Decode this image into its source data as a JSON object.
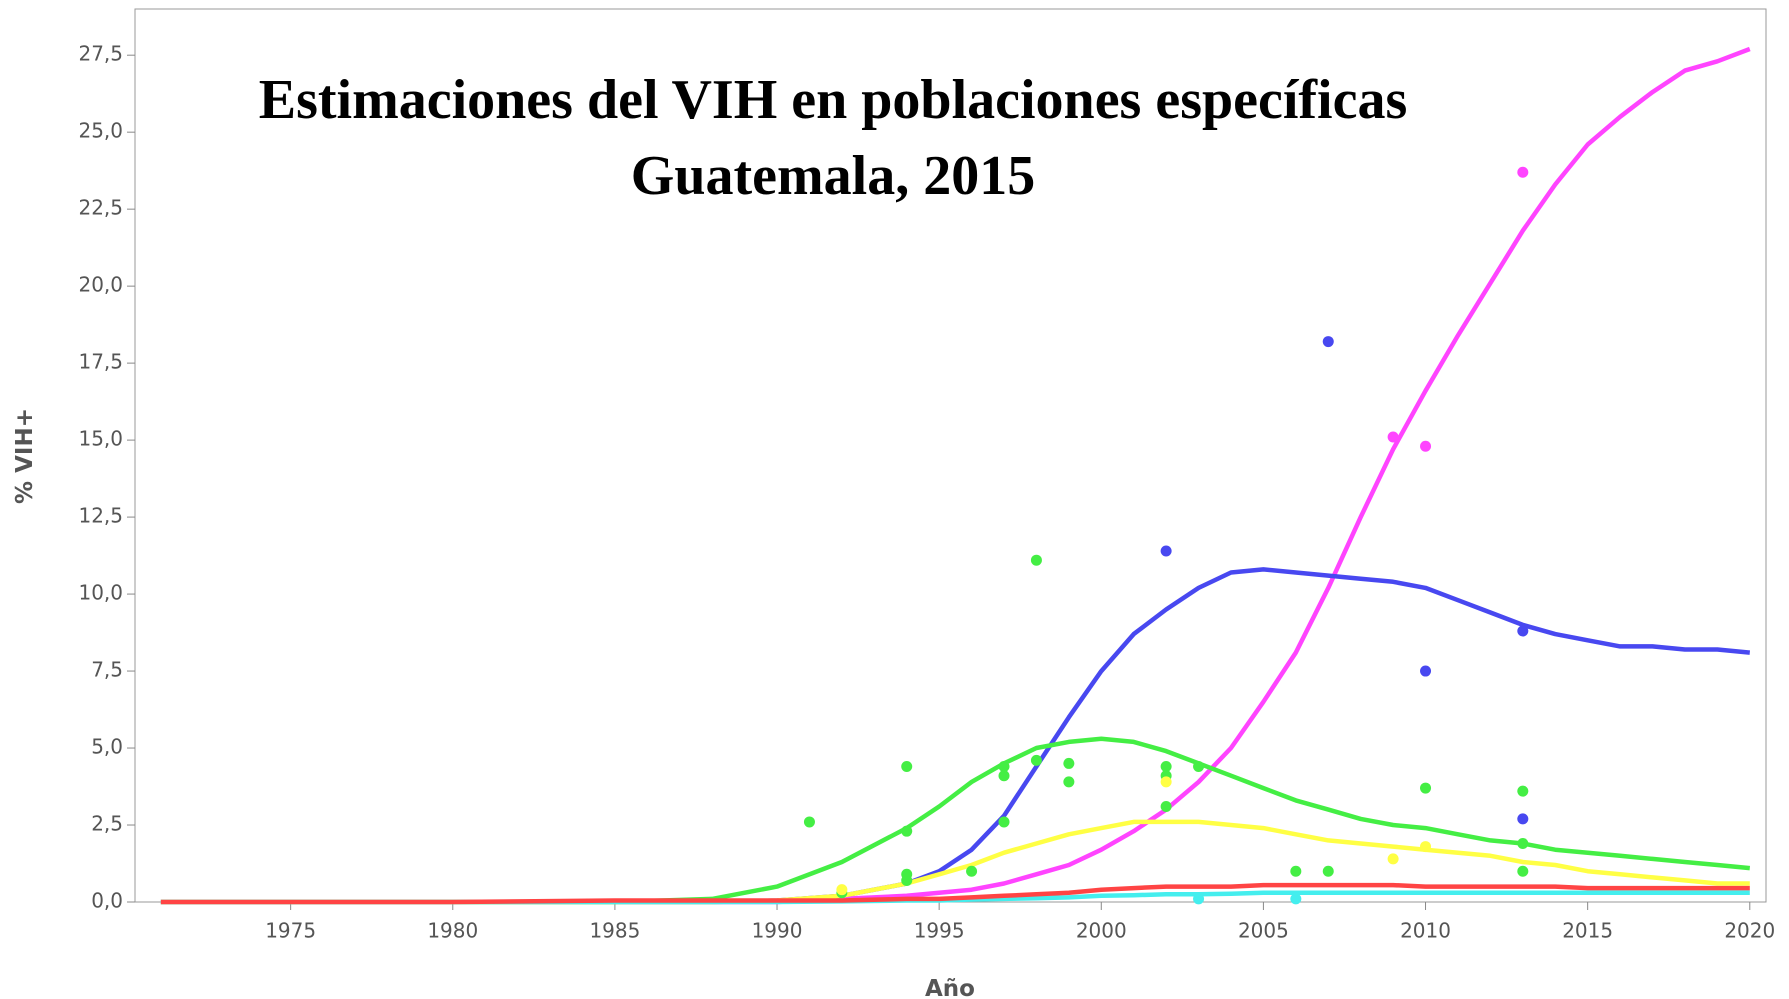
{
  "chart_data": {
    "type": "line",
    "title": "Estimaciones del VIH en poblaciones específicas",
    "subtitle": "Guatemala, 2015",
    "x_label": "Año",
    "y_label": "% VIH+",
    "xlim": [
      1970.2,
      2020.5
    ],
    "ylim": [
      0,
      29
    ],
    "xticks": [
      1975,
      1980,
      1985,
      1990,
      1995,
      2000,
      2005,
      2010,
      2015,
      2020
    ],
    "yticks": [
      {
        "value": 0,
        "label": "0,0"
      },
      {
        "value": 2.5,
        "label": "2,5"
      },
      {
        "value": 5,
        "label": "5,0"
      },
      {
        "value": 7.5,
        "label": "7,5"
      },
      {
        "value": 10,
        "label": "10,0"
      },
      {
        "value": 12.5,
        "label": "12,5"
      },
      {
        "value": 15,
        "label": "15,0"
      },
      {
        "value": 17.5,
        "label": "17,5"
      },
      {
        "value": 20,
        "label": "20,0"
      },
      {
        "value": 22.5,
        "label": "22,5"
      },
      {
        "value": 25,
        "label": "25,0"
      },
      {
        "value": 27.5,
        "label": "27,5"
      }
    ],
    "x": [
      1971,
      1980,
      1985,
      1988,
      1990,
      1992,
      1994,
      1995,
      1996,
      1997,
      1998,
      1999,
      2000,
      2001,
      2002,
      2003,
      2004,
      2005,
      2006,
      2007,
      2008,
      2009,
      2010,
      2011,
      2012,
      2013,
      2014,
      2015,
      2016,
      2017,
      2018,
      2019,
      2020
    ],
    "series": [
      {
        "color": "#ff44ff",
        "values": [
          0,
          0,
          0,
          0,
          0,
          0.1,
          0.2,
          0.3,
          0.4,
          0.6,
          0.9,
          1.2,
          1.7,
          2.3,
          3.0,
          3.9,
          5.0,
          6.5,
          8.1,
          10.2,
          12.5,
          14.7,
          16.6,
          18.4,
          20.1,
          21.8,
          23.3,
          24.6,
          25.5,
          26.3,
          27.0,
          27.3,
          27.7
        ]
      },
      {
        "color": "#4848f0",
        "values": [
          0,
          0,
          0,
          0,
          0.05,
          0.2,
          0.6,
          1.0,
          1.7,
          2.8,
          4.4,
          6.0,
          7.5,
          8.7,
          9.5,
          10.2,
          10.7,
          10.8,
          10.7,
          10.6,
          10.5,
          10.4,
          10.2,
          9.8,
          9.4,
          9.0,
          8.7,
          8.5,
          8.3,
          8.3,
          8.2,
          8.2,
          8.1
        ]
      },
      {
        "color": "#44ee44",
        "values": [
          0,
          0,
          0,
          0.1,
          0.5,
          1.3,
          2.4,
          3.1,
          3.9,
          4.5,
          5.0,
          5.2,
          5.3,
          5.2,
          4.9,
          4.5,
          4.1,
          3.7,
          3.3,
          3.0,
          2.7,
          2.5,
          2.4,
          2.2,
          2.0,
          1.9,
          1.7,
          1.6,
          1.5,
          1.4,
          1.3,
          1.2,
          1.1
        ]
      },
      {
        "color": "#ffff44",
        "values": [
          0,
          0,
          0,
          0,
          0.05,
          0.2,
          0.6,
          0.9,
          1.2,
          1.6,
          1.9,
          2.2,
          2.4,
          2.6,
          2.6,
          2.6,
          2.5,
          2.4,
          2.2,
          2.0,
          1.9,
          1.8,
          1.7,
          1.6,
          1.5,
          1.3,
          1.2,
          1.0,
          0.9,
          0.8,
          0.7,
          0.6,
          0.6
        ]
      },
      {
        "color": "#44eeee",
        "values": [
          0,
          0,
          0,
          0,
          0,
          0.02,
          0.05,
          0.05,
          0.08,
          0.1,
          0.12,
          0.15,
          0.2,
          0.22,
          0.25,
          0.25,
          0.27,
          0.3,
          0.3,
          0.3,
          0.3,
          0.3,
          0.3,
          0.3,
          0.3,
          0.3,
          0.3,
          0.3,
          0.3,
          0.3,
          0.3,
          0.3,
          0.3
        ]
      },
      {
        "color": "#ff4444",
        "values": [
          0,
          0,
          0.05,
          0.05,
          0.05,
          0.05,
          0.1,
          0.1,
          0.15,
          0.2,
          0.25,
          0.3,
          0.4,
          0.45,
          0.5,
          0.5,
          0.5,
          0.55,
          0.55,
          0.55,
          0.55,
          0.55,
          0.5,
          0.5,
          0.5,
          0.5,
          0.5,
          0.45,
          0.45,
          0.45,
          0.45,
          0.45,
          0.45
        ]
      }
    ],
    "points": [
      {
        "color": "#4848f0",
        "x": [
          2007,
          2002,
          2010,
          2013,
          2013
        ],
        "values": [
          18.2,
          11.4,
          7.5,
          8.8,
          2.7
        ]
      },
      {
        "color": "#ff44ff",
        "x": [
          2013,
          2009,
          2010
        ],
        "values": [
          23.7,
          15.1,
          14.8
        ]
      },
      {
        "color": "#44ee44",
        "x": [
          1991,
          1992,
          1994,
          1994,
          1994,
          1994,
          1996,
          1997,
          1997,
          1997,
          1998,
          1998,
          1999,
          1999,
          2002,
          2002,
          2002,
          2003,
          2006,
          2007,
          2010,
          2013,
          2013,
          2013
        ],
        "values": [
          2.6,
          0.3,
          4.4,
          2.3,
          0.9,
          0.7,
          1.0,
          4.4,
          4.1,
          2.6,
          11.1,
          4.6,
          4.5,
          3.9,
          4.4,
          4.1,
          3.1,
          4.4,
          1.0,
          1.0,
          3.7,
          3.6,
          1.9,
          1.0
        ]
      },
      {
        "color": "#ffff44",
        "x": [
          2002,
          2009,
          2010,
          1992
        ],
        "values": [
          3.9,
          1.4,
          1.8,
          0.4
        ]
      },
      {
        "color": "#44eeee",
        "x": [
          2006,
          2003
        ],
        "values": [
          0.1,
          0.1
        ]
      }
    ]
  }
}
